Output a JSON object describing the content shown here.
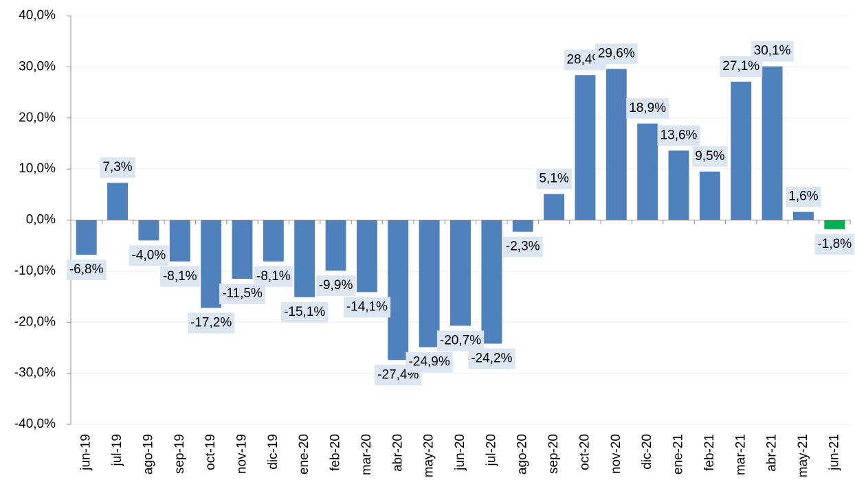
{
  "chart_data": {
    "type": "bar",
    "categories": [
      "jun-19",
      "jul-19",
      "ago-19",
      "sep-19",
      "oct-19",
      "nov-19",
      "dic-19",
      "ene-20",
      "feb-20",
      "mar-20",
      "abr-20",
      "may-20",
      "jun-20",
      "jul-20",
      "ago-20",
      "sep-20",
      "oct-20",
      "nov-20",
      "dic-20",
      "ene-21",
      "feb-21",
      "mar-21",
      "abr-21",
      "may-21",
      "jun-21"
    ],
    "values": [
      -6.8,
      7.3,
      -4.0,
      -8.1,
      -17.2,
      -11.5,
      -8.1,
      -15.1,
      -9.9,
      -14.1,
      -27.4,
      -24.9,
      -20.7,
      -24.2,
      -2.3,
      5.1,
      28.4,
      29.6,
      18.9,
      13.6,
      9.5,
      27.1,
      30.1,
      1.6,
      -1.8
    ],
    "value_labels": [
      "-6,8%",
      "7,3%",
      "-4,0%",
      "-8,1%",
      "-17,2%",
      "-11,5%",
      "-8,1%",
      "-15,1%",
      "-9,9%",
      "-14,1%",
      "-27,4%",
      "-24,9%",
      "-20,7%",
      "-24,2%",
      "-2,3%",
      "5,1%",
      "28,4%",
      "29,6%",
      "18,9%",
      "13,6%",
      "9,5%",
      "27,1%",
      "30,1%",
      "1,6%",
      "-1,8%"
    ],
    "colors": [
      "#4f81bd",
      "#4f81bd",
      "#4f81bd",
      "#4f81bd",
      "#4f81bd",
      "#4f81bd",
      "#4f81bd",
      "#4f81bd",
      "#4f81bd",
      "#4f81bd",
      "#4f81bd",
      "#4f81bd",
      "#4f81bd",
      "#4f81bd",
      "#4f81bd",
      "#4f81bd",
      "#4f81bd",
      "#4f81bd",
      "#4f81bd",
      "#4f81bd",
      "#4f81bd",
      "#4f81bd",
      "#4f81bd",
      "#4f81bd",
      "#00b050"
    ],
    "ylim": [
      -40,
      40
    ],
    "yticks": [
      {
        "value": -40,
        "label": "-40,0%"
      },
      {
        "value": -30,
        "label": "-30,0%"
      },
      {
        "value": -20,
        "label": "-20,0%"
      },
      {
        "value": -10,
        "label": "-10,0%"
      },
      {
        "value": 0,
        "label": "0,0%"
      },
      {
        "value": 10,
        "label": "10,0%"
      },
      {
        "value": 20,
        "label": "20,0%"
      },
      {
        "value": 30,
        "label": "30,0%"
      },
      {
        "value": 40,
        "label": "40,0%"
      }
    ],
    "grid": true
  }
}
